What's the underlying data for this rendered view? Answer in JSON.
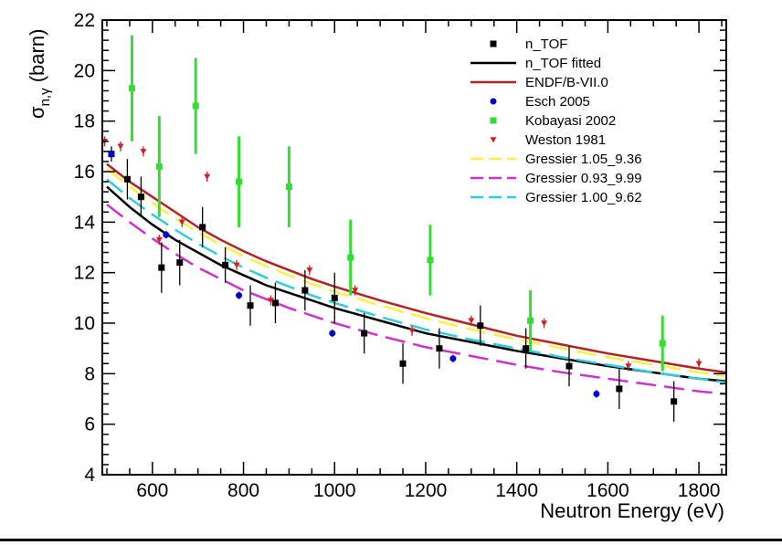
{
  "chart_data": {
    "type": "scatter",
    "title": "",
    "xlabel": "Neutron Energy (eV)",
    "ylabel_main": "σ",
    "ylabel_sub": "n,γ",
    "ylabel_unit": " (barn)",
    "xlim": [
      490,
      1860
    ],
    "ylim": [
      4,
      22
    ],
    "x_ticks": [
      600,
      800,
      1000,
      1200,
      1400,
      1600,
      1800
    ],
    "x_tick_labels": [
      "600",
      "800",
      "1000",
      "1200",
      "1400",
      "1600",
      "1800"
    ],
    "y_ticks": [
      4,
      6,
      8,
      10,
      12,
      14,
      16,
      18,
      20,
      22
    ],
    "y_tick_labels": [
      "4",
      "6",
      "8",
      "10",
      "12",
      "14",
      "16",
      "18",
      "20",
      "22"
    ],
    "legend_position": "top-right",
    "grid": false,
    "series": [
      {
        "name": "n_TOF",
        "kind": "points",
        "marker": "square",
        "color": "#000000",
        "points": [
          {
            "x": 510,
            "y": 16.7,
            "err": 0.3
          },
          {
            "x": 545,
            "y": 15.7,
            "err": 0.8
          },
          {
            "x": 575,
            "y": 15.0,
            "err": 0.8
          },
          {
            "x": 620,
            "y": 12.2,
            "err": 1.0
          },
          {
            "x": 660,
            "y": 12.4,
            "err": 0.9
          },
          {
            "x": 710,
            "y": 13.8,
            "err": 0.8
          },
          {
            "x": 760,
            "y": 12.3,
            "err": 0.7
          },
          {
            "x": 815,
            "y": 10.7,
            "err": 0.8
          },
          {
            "x": 870,
            "y": 10.8,
            "err": 0.8
          },
          {
            "x": 935,
            "y": 11.3,
            "err": 0.8
          },
          {
            "x": 1000,
            "y": 11.0,
            "err": 1.0
          },
          {
            "x": 1065,
            "y": 9.6,
            "err": 0.8
          },
          {
            "x": 1150,
            "y": 8.4,
            "err": 0.8
          },
          {
            "x": 1230,
            "y": 9.0,
            "err": 0.8
          },
          {
            "x": 1320,
            "y": 9.9,
            "err": 0.8
          },
          {
            "x": 1420,
            "y": 9.0,
            "err": 0.8
          },
          {
            "x": 1515,
            "y": 8.3,
            "err": 0.8
          },
          {
            "x": 1625,
            "y": 7.4,
            "err": 0.8
          },
          {
            "x": 1745,
            "y": 6.9,
            "err": 0.8
          }
        ]
      },
      {
        "name": "n_TOF fitted",
        "kind": "curve",
        "color": "#000000",
        "dash": "solid",
        "x": [
          500,
          550,
          600,
          650,
          700,
          750,
          800,
          850,
          900,
          950,
          1000,
          1100,
          1200,
          1300,
          1400,
          1500,
          1600,
          1700,
          1800,
          1860
        ],
        "y": [
          15.4,
          14.6,
          13.9,
          13.3,
          12.8,
          12.3,
          11.9,
          11.5,
          11.2,
          10.9,
          10.6,
          10.1,
          9.6,
          9.25,
          8.9,
          8.6,
          8.3,
          8.05,
          7.8,
          7.7
        ]
      },
      {
        "name": "ENDF/B-VII.0",
        "kind": "curve",
        "color": "#b22222",
        "dash": "solid",
        "x": [
          500,
          550,
          600,
          650,
          700,
          750,
          800,
          850,
          900,
          950,
          1000,
          1100,
          1200,
          1300,
          1400,
          1500,
          1600,
          1700,
          1800,
          1860
        ],
        "y": [
          16.3,
          15.6,
          15.0,
          14.4,
          13.8,
          13.3,
          12.85,
          12.45,
          12.1,
          11.75,
          11.45,
          10.9,
          10.4,
          9.95,
          9.5,
          9.15,
          8.8,
          8.5,
          8.2,
          8.05
        ]
      },
      {
        "name": "Esch 2005",
        "kind": "points",
        "marker": "circle",
        "color": "#0000cc",
        "points": [
          {
            "x": 510,
            "y": 16.7,
            "err": 0.15
          },
          {
            "x": 630,
            "y": 13.5,
            "err": 0.15
          },
          {
            "x": 790,
            "y": 11.1,
            "err": 0.15
          },
          {
            "x": 995,
            "y": 9.6,
            "err": 0.15
          },
          {
            "x": 1260,
            "y": 8.6,
            "err": 0.15
          },
          {
            "x": 1575,
            "y": 7.2,
            "err": 0.15
          }
        ]
      },
      {
        "name": "Kobayasi 2002",
        "kind": "points",
        "marker": "square",
        "color": "#33dd33",
        "points": [
          {
            "x": 555,
            "y": 19.3,
            "err": 2.1
          },
          {
            "x": 615,
            "y": 16.2,
            "err": 2.0
          },
          {
            "x": 695,
            "y": 18.6,
            "err": 1.9
          },
          {
            "x": 790,
            "y": 15.6,
            "err": 1.8
          },
          {
            "x": 900,
            "y": 15.4,
            "err": 1.6
          },
          {
            "x": 1035,
            "y": 12.6,
            "err": 1.5
          },
          {
            "x": 1210,
            "y": 12.5,
            "err": 1.4
          },
          {
            "x": 1430,
            "y": 10.1,
            "err": 1.2
          },
          {
            "x": 1720,
            "y": 9.2,
            "err": 1.1
          }
        ]
      },
      {
        "name": "Weston 1981",
        "kind": "points",
        "marker": "triangle-down",
        "color": "#cc2222",
        "points": [
          {
            "x": 495,
            "y": 17.2,
            "err": 0.2
          },
          {
            "x": 530,
            "y": 17.0,
            "err": 0.2
          },
          {
            "x": 580,
            "y": 16.8,
            "err": 0.2
          },
          {
            "x": 615,
            "y": 13.3,
            "err": 0.2
          },
          {
            "x": 665,
            "y": 14.0,
            "err": 0.2
          },
          {
            "x": 720,
            "y": 15.8,
            "err": 0.2
          },
          {
            "x": 785,
            "y": 12.3,
            "err": 0.2
          },
          {
            "x": 860,
            "y": 10.9,
            "err": 0.2
          },
          {
            "x": 945,
            "y": 12.1,
            "err": 0.2
          },
          {
            "x": 1045,
            "y": 11.3,
            "err": 0.2
          },
          {
            "x": 1170,
            "y": 9.7,
            "err": 0.2
          },
          {
            "x": 1300,
            "y": 10.1,
            "err": 0.2
          },
          {
            "x": 1460,
            "y": 10.0,
            "err": 0.2
          },
          {
            "x": 1645,
            "y": 8.3,
            "err": 0.2
          },
          {
            "x": 1800,
            "y": 8.4,
            "err": 0.2
          }
        ]
      },
      {
        "name": "Gressier 1.05_9.36",
        "kind": "curve",
        "color": "#ffee44",
        "dash": "long-dash",
        "x": [
          500,
          550,
          600,
          650,
          700,
          750,
          800,
          850,
          900,
          950,
          1000,
          1100,
          1200,
          1300,
          1400,
          1500,
          1600,
          1700,
          1800,
          1860
        ],
        "y": [
          16.1,
          15.4,
          14.75,
          14.15,
          13.6,
          13.1,
          12.65,
          12.25,
          11.9,
          11.55,
          11.25,
          10.7,
          10.2,
          9.75,
          9.35,
          9.0,
          8.65,
          8.35,
          8.05,
          7.9
        ]
      },
      {
        "name": "Gressier 0.93_9.99",
        "kind": "curve",
        "color": "#cc33cc",
        "dash": "long-dash",
        "x": [
          500,
          550,
          600,
          650,
          700,
          750,
          800,
          850,
          900,
          950,
          1000,
          1100,
          1200,
          1300,
          1400,
          1500,
          1600,
          1700,
          1800,
          1860
        ],
        "y": [
          14.7,
          14.0,
          13.35,
          12.75,
          12.2,
          11.75,
          11.3,
          10.95,
          10.6,
          10.3,
          10.0,
          9.5,
          9.05,
          8.7,
          8.35,
          8.05,
          7.8,
          7.55,
          7.3,
          7.2
        ]
      },
      {
        "name": "Gressier 1.00_9.62",
        "kind": "curve",
        "color": "#33ccdd",
        "dash": "long-dash",
        "x": [
          500,
          550,
          600,
          650,
          700,
          750,
          800,
          850,
          900,
          950,
          1000,
          1100,
          1200,
          1300,
          1400,
          1500,
          1600,
          1700,
          1800,
          1860
        ],
        "y": [
          15.7,
          14.95,
          14.3,
          13.7,
          13.15,
          12.65,
          12.2,
          11.8,
          11.45,
          11.1,
          10.8,
          10.25,
          9.75,
          9.35,
          9.0,
          8.65,
          8.35,
          8.05,
          7.8,
          7.65
        ]
      }
    ]
  }
}
